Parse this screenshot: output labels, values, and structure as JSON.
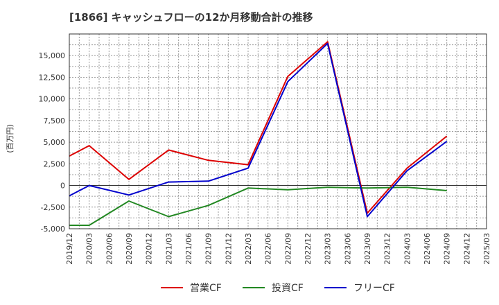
{
  "chart_data": {
    "type": "line",
    "title": "[1866]  キャッシュフローの12か月移動合計の推移",
    "ylabel": "(百万円)",
    "xlabel": "",
    "ylim": [
      -5000,
      17500
    ],
    "yticks": [
      -5000,
      -2500,
      0,
      2500,
      5000,
      7500,
      10000,
      12500,
      15000
    ],
    "ytick_labels": [
      "-5,000",
      "-2,500",
      "0",
      "2,500",
      "5,000",
      "7,500",
      "10,000",
      "12,500",
      "15,000"
    ],
    "x_ticks": [
      "2019/12",
      "2020/03",
      "2020/06",
      "2020/09",
      "2020/12",
      "2021/03",
      "2021/06",
      "2021/09",
      "2021/12",
      "2022/03",
      "2022/06",
      "2022/09",
      "2022/12",
      "2023/03",
      "2023/06",
      "2023/09",
      "2023/12",
      "2024/03",
      "2024/06",
      "2024/09",
      "2024/12",
      "2025/03"
    ],
    "grid": true,
    "legend_position": "bottom",
    "series": [
      {
        "name": "営業CF",
        "color": "#dd0000",
        "x": [
          "2019/12",
          "2020/03",
          "2020/09",
          "2021/03",
          "2021/09",
          "2022/03",
          "2022/09",
          "2023/03",
          "2023/09",
          "2024/03",
          "2024/09"
        ],
        "values": [
          3400,
          4600,
          700,
          4100,
          2900,
          2400,
          12600,
          16600,
          -3200,
          2000,
          5700
        ]
      },
      {
        "name": "投資CF",
        "color": "#228822",
        "x": [
          "2019/12",
          "2020/03",
          "2020/09",
          "2021/03",
          "2021/09",
          "2022/03",
          "2022/09",
          "2023/03",
          "2023/09",
          "2024/03",
          "2024/09"
        ],
        "values": [
          -4600,
          -4600,
          -1800,
          -3600,
          -2300,
          -300,
          -500,
          -200,
          -300,
          -200,
          -600
        ]
      },
      {
        "name": "フリーCF",
        "color": "#0000cc",
        "x": [
          "2019/12",
          "2020/03",
          "2020/09",
          "2021/03",
          "2021/09",
          "2022/03",
          "2022/09",
          "2023/03",
          "2023/09",
          "2024/03",
          "2024/09"
        ],
        "values": [
          -1200,
          0,
          -1100,
          400,
          500,
          2000,
          12000,
          16400,
          -3600,
          1700,
          5100
        ]
      }
    ]
  }
}
